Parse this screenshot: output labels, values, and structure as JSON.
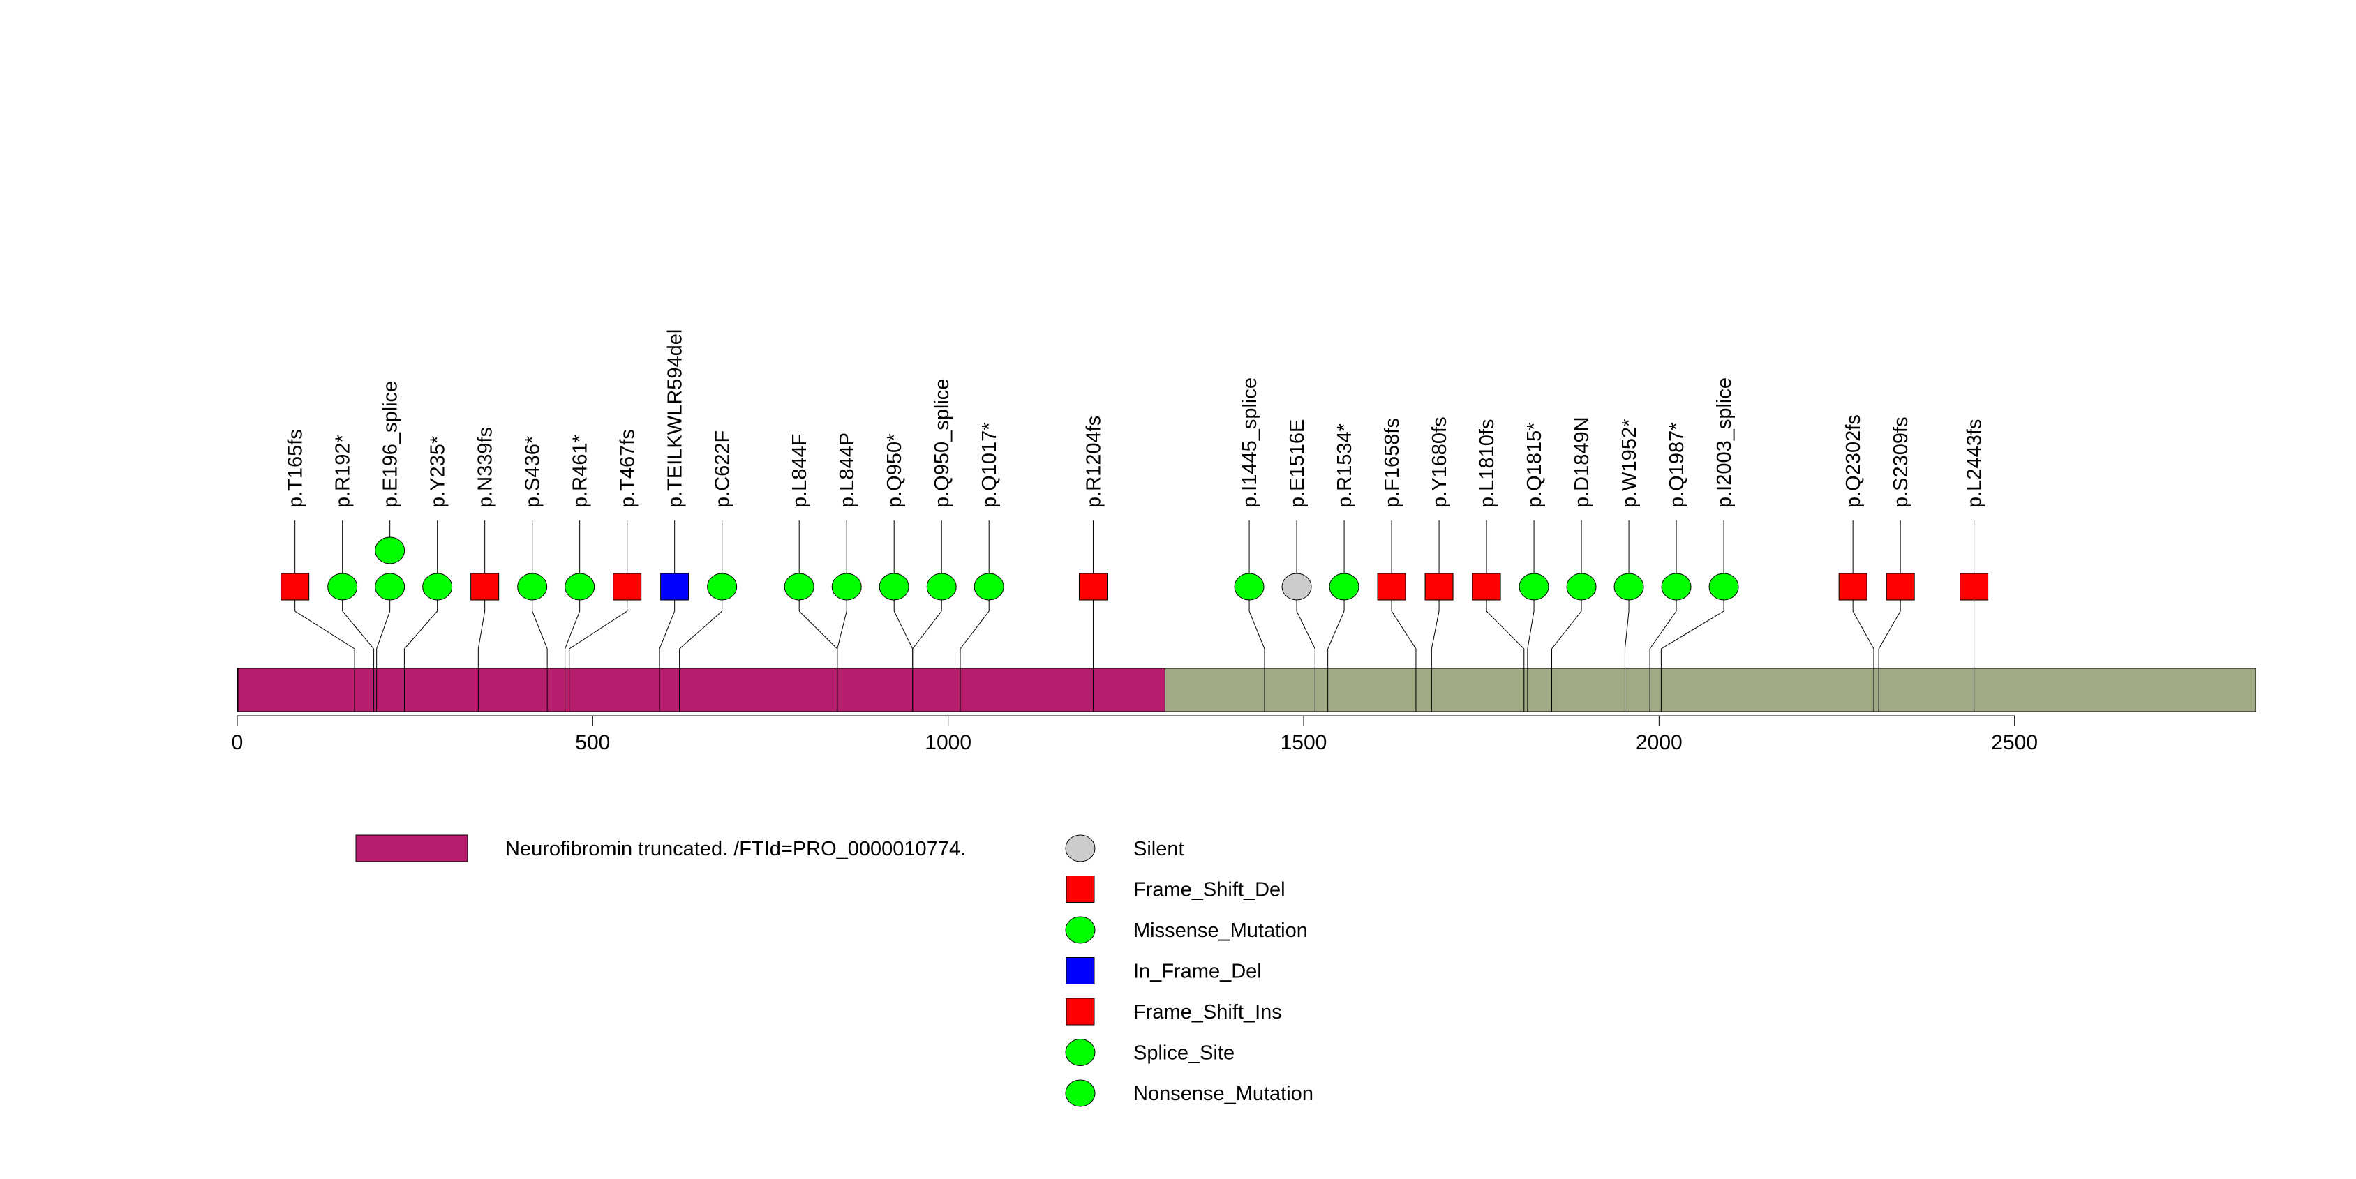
{
  "chart_data": {
    "type": "lollipop",
    "title": "",
    "xlabel": "",
    "ylabel": "",
    "protein_length": 2839,
    "xlim": [
      0,
      2839
    ],
    "x_ticks": [
      0,
      500,
      1000,
      1500,
      2000,
      2500
    ],
    "domains": [
      {
        "name": "Neurofibromin truncated. /FTId=PRO_0000010774.",
        "start": 1,
        "end": 1305,
        "color": "#b81e6e"
      }
    ],
    "backbone_color": "#a0ab84",
    "mutations": [
      {
        "label": "p.T165fs",
        "position": 165,
        "type": "Frame_Shift_Del",
        "count": 1
      },
      {
        "label": "p.R192*",
        "position": 192,
        "type": "Nonsense_Mutation",
        "count": 1
      },
      {
        "label": "p.E196_splice",
        "position": 196,
        "type": "Splice_Site",
        "count": 2
      },
      {
        "label": "p.Y235*",
        "position": 235,
        "type": "Nonsense_Mutation",
        "count": 1
      },
      {
        "label": "p.N339fs",
        "position": 339,
        "type": "Frame_Shift_Del",
        "count": 1
      },
      {
        "label": "p.S436*",
        "position": 436,
        "type": "Nonsense_Mutation",
        "count": 1
      },
      {
        "label": "p.R461*",
        "position": 461,
        "type": "Nonsense_Mutation",
        "count": 1
      },
      {
        "label": "p.T467fs",
        "position": 467,
        "type": "Frame_Shift_Del",
        "count": 1
      },
      {
        "label": "p.TEILKWLR594del",
        "position": 594,
        "type": "In_Frame_Del",
        "count": 1
      },
      {
        "label": "p.C622F",
        "position": 622,
        "type": "Missense_Mutation",
        "count": 1
      },
      {
        "label": "p.L844F",
        "position": 844,
        "type": "Missense_Mutation",
        "count": 1
      },
      {
        "label": "p.L844P",
        "position": 844,
        "type": "Missense_Mutation",
        "count": 1
      },
      {
        "label": "p.Q950*",
        "position": 950,
        "type": "Nonsense_Mutation",
        "count": 1
      },
      {
        "label": "p.Q950_splice",
        "position": 950,
        "type": "Splice_Site",
        "count": 1
      },
      {
        "label": "p.Q1017*",
        "position": 1017,
        "type": "Nonsense_Mutation",
        "count": 1
      },
      {
        "label": "p.R1204fs",
        "position": 1204,
        "type": "Frame_Shift_Del",
        "count": 1
      },
      {
        "label": "p.I1445_splice",
        "position": 1445,
        "type": "Splice_Site",
        "count": 1
      },
      {
        "label": "p.E1516E",
        "position": 1516,
        "type": "Silent",
        "count": 1
      },
      {
        "label": "p.R1534*",
        "position": 1534,
        "type": "Nonsense_Mutation",
        "count": 1
      },
      {
        "label": "p.F1658fs",
        "position": 1658,
        "type": "Frame_Shift_Del",
        "count": 1
      },
      {
        "label": "p.Y1680fs",
        "position": 1680,
        "type": "Frame_Shift_Del",
        "count": 1
      },
      {
        "label": "p.L1810fs",
        "position": 1810,
        "type": "Frame_Shift_Del",
        "count": 1
      },
      {
        "label": "p.Q1815*",
        "position": 1815,
        "type": "Nonsense_Mutation",
        "count": 1
      },
      {
        "label": "p.D1849N",
        "position": 1849,
        "type": "Missense_Mutation",
        "count": 1
      },
      {
        "label": "p.W1952*",
        "position": 1952,
        "type": "Nonsense_Mutation",
        "count": 1
      },
      {
        "label": "p.Q1987*",
        "position": 1987,
        "type": "Nonsense_Mutation",
        "count": 1
      },
      {
        "label": "p.I2003_splice",
        "position": 2003,
        "type": "Splice_Site",
        "count": 1
      },
      {
        "label": "p.Q2302fs",
        "position": 2302,
        "type": "Frame_Shift_Del",
        "count": 1
      },
      {
        "label": "p.S2309fs",
        "position": 2309,
        "type": "Frame_Shift_Del",
        "count": 1
      },
      {
        "label": "p.L2443fs",
        "position": 2443,
        "type": "Frame_Shift_Del",
        "count": 1
      }
    ],
    "legend": {
      "placement": "bottom",
      "domain_entries": [
        {
          "label": "Neurofibromin truncated. /FTId=PRO_0000010774.",
          "color": "#b81e6e"
        }
      ],
      "mutation_types": [
        {
          "label": "Silent",
          "shape": "circle",
          "color": "#cccccc"
        },
        {
          "label": "Frame_Shift_Del",
          "shape": "square",
          "color": "#ff0000"
        },
        {
          "label": "Missense_Mutation",
          "shape": "circle",
          "color": "#00ff00"
        },
        {
          "label": "In_Frame_Del",
          "shape": "square",
          "color": "#0000ff"
        },
        {
          "label": "Frame_Shift_Ins",
          "shape": "square",
          "color": "#ff0000"
        },
        {
          "label": "Splice_Site",
          "shape": "circle",
          "color": "#00ff00"
        },
        {
          "label": "Nonsense_Mutation",
          "shape": "circle",
          "color": "#00ff00"
        }
      ]
    }
  }
}
